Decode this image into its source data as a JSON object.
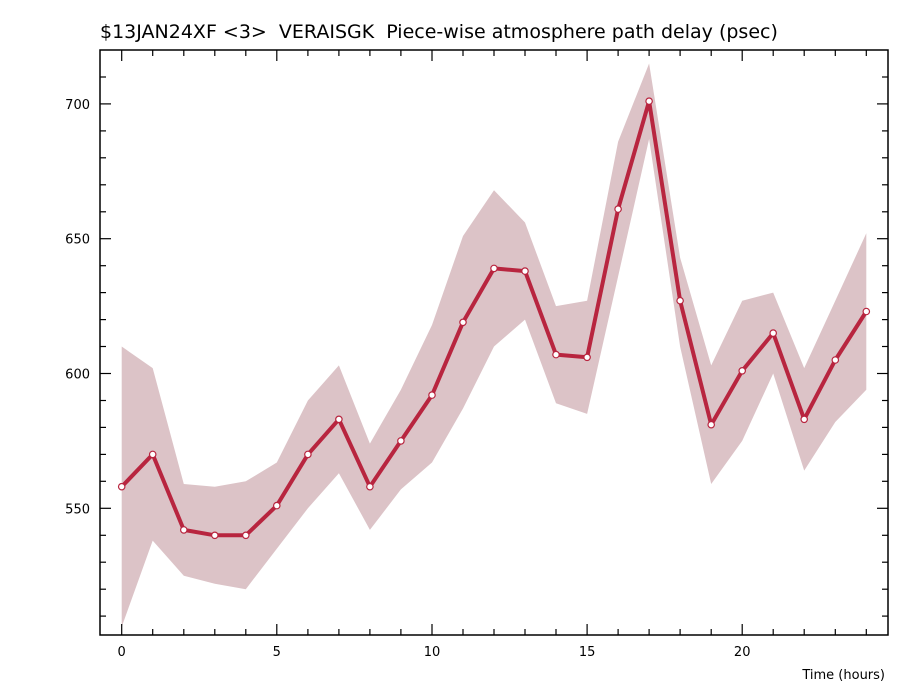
{
  "chart_data": {
    "type": "line",
    "title": "$13JAN24XF <3>  VERAISGK  Piece-wise atmosphere path delay (psec)",
    "xlabel": "Time (hours)",
    "ylabel": "",
    "xlim": [
      -0.7,
      24.7
    ],
    "ylim": [
      503,
      720
    ],
    "x_ticks": [
      0,
      5,
      10,
      15,
      20
    ],
    "y_ticks": [
      550,
      600,
      650,
      700
    ],
    "grid": false,
    "colors": {
      "line": "#b8253f",
      "band": "#dcc3c7",
      "marker_fill": "#ffffff"
    },
    "series": [
      {
        "x": [
          0,
          1,
          2,
          3,
          4,
          5,
          6,
          7,
          8,
          9,
          10,
          11,
          12,
          13,
          14,
          15,
          16,
          17,
          18,
          19,
          20,
          21,
          22,
          23,
          24
        ],
        "y": [
          558,
          570,
          542,
          540,
          540,
          551,
          570,
          583,
          558,
          575,
          592,
          619,
          639,
          638,
          607,
          606,
          661,
          701,
          627,
          581,
          601,
          615,
          583,
          605,
          623
        ],
        "upper": [
          610,
          602,
          559,
          558,
          560,
          567,
          590,
          603,
          574,
          594,
          618,
          651,
          668,
          656,
          625,
          627,
          686,
          715,
          643,
          603,
          627,
          630,
          602,
          627,
          652
        ],
        "lower": [
          506,
          538,
          525,
          522,
          520,
          535,
          550,
          563,
          542,
          557,
          567,
          587,
          610,
          620,
          589,
          585,
          636,
          687,
          610,
          559,
          575,
          600,
          564,
          582,
          594
        ]
      }
    ]
  }
}
